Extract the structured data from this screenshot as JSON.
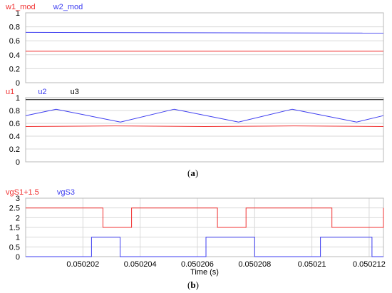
{
  "colors": {
    "red": "#f03030",
    "blue": "#3c3cf0",
    "black": "#000000",
    "grid": "#d8d8d8",
    "axis": "#b8b8b8"
  },
  "chart_data": [
    {
      "type": "line",
      "panel": "a-top",
      "ylim": [
        0,
        1
      ],
      "yticks": [
        "1",
        "0.8",
        "0.6",
        "0.4",
        "0.2",
        "0"
      ],
      "grid": true,
      "legend_position": "top-left",
      "series": [
        {
          "name": "w1_mod",
          "color": "red",
          "x": [
            0,
            1
          ],
          "y": [
            0.45,
            0.45
          ]
        },
        {
          "name": "w2_mod",
          "color": "blue",
          "x": [
            0,
            1
          ],
          "y": [
            0.72,
            0.71
          ]
        }
      ]
    },
    {
      "type": "line",
      "panel": "a-bottom",
      "ylim": [
        0,
        1
      ],
      "yticks": [
        "1",
        "0.8",
        "0.6",
        "0.4",
        "0.2",
        "0"
      ],
      "grid": true,
      "legend_position": "top-left",
      "series": [
        {
          "name": "u1",
          "color": "red",
          "x": [
            0,
            0.25,
            0.5,
            0.75,
            1
          ],
          "y": [
            0.55,
            0.56,
            0.55,
            0.56,
            0.55
          ]
        },
        {
          "name": "u2",
          "color": "blue",
          "x": [
            0,
            0.085,
            0.265,
            0.415,
            0.595,
            0.745,
            0.925,
            1
          ],
          "y": [
            0.72,
            0.82,
            0.62,
            0.82,
            0.62,
            0.82,
            0.62,
            0.72
          ]
        },
        {
          "name": "u3",
          "color": "black",
          "x": [
            0,
            1
          ],
          "y": [
            0.97,
            0.97
          ]
        }
      ]
    },
    {
      "type": "line",
      "panel": "b",
      "xlabel": "Time (s)",
      "xlim": [
        0.0502,
        0.0502125
      ],
      "ylim": [
        0,
        3
      ],
      "yticks": [
        "3",
        "2.5",
        "2",
        "1.5",
        "1",
        "0.5",
        "0"
      ],
      "xticks": [
        0.050202,
        0.050204,
        0.050206,
        0.050208,
        0.05021,
        0.050212
      ],
      "xticklabels": [
        "0.050202",
        "0.050204",
        "0.050206",
        "0.050208",
        "0.05021",
        "0.050212"
      ],
      "grid": true,
      "legend_position": "top-left",
      "series": [
        {
          "name": "vgS1+1.5",
          "color": "red",
          "step_x": [
            0.0502,
            0.0502027,
            0.0502037,
            0.0502127
          ],
          "step_y": [
            2.5,
            1.5,
            2.5,
            2.5
          ],
          "x": [
            0.0502,
            0.0502027,
            0.0502027,
            0.0502037,
            0.0502037,
            0.0502067,
            0.0502067,
            0.0502077,
            0.0502077,
            0.0502107,
            0.0502107,
            0.0502125,
            0.0502125
          ],
          "y": [
            2.5,
            2.5,
            1.5,
            1.5,
            2.5,
            2.5,
            1.5,
            1.5,
            2.5,
            2.5,
            1.5,
            1.5,
            2.5
          ]
        },
        {
          "name": "vgS3",
          "color": "blue",
          "x": [
            0.0502,
            0.0502023,
            0.0502023,
            0.0502033,
            0.0502033,
            0.0502063,
            0.0502063,
            0.050208,
            0.050208,
            0.0502103,
            0.0502103,
            0.0502121,
            0.0502121,
            0.0502125
          ],
          "y": [
            0,
            0,
            1,
            1,
            0,
            0,
            1,
            1,
            0,
            0,
            1,
            1,
            0,
            0
          ]
        }
      ]
    }
  ],
  "labels": {
    "a": "a",
    "b": "b"
  }
}
